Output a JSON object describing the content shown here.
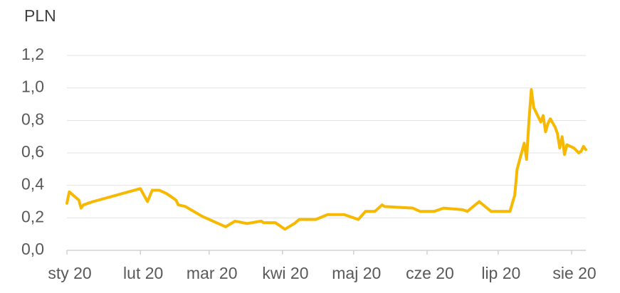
{
  "chart_data": {
    "type": "line",
    "y_axis_label": "PLN",
    "x": [
      0,
      1,
      5,
      6,
      7,
      11,
      31,
      34,
      36,
      39,
      42,
      46,
      47,
      50,
      57,
      67,
      71,
      76,
      82,
      83,
      88,
      92,
      96,
      98,
      105,
      110,
      117,
      123,
      126,
      130,
      133,
      134,
      146,
      149,
      155,
      159,
      167,
      169,
      174,
      179,
      187,
      189,
      190,
      193,
      194,
      195,
      196,
      197,
      199,
      200,
      201,
      202,
      203,
      204,
      206,
      207,
      208,
      209,
      210,
      211,
      214,
      216,
      217,
      218,
      219
    ],
    "series": [
      {
        "name": "PLN",
        "color": "#f7b800",
        "values": [
          0.29,
          0.36,
          0.31,
          0.26,
          0.28,
          0.3,
          0.38,
          0.3,
          0.37,
          0.37,
          0.35,
          0.31,
          0.28,
          0.27,
          0.21,
          0.145,
          0.18,
          0.165,
          0.18,
          0.17,
          0.17,
          0.13,
          0.165,
          0.19,
          0.19,
          0.22,
          0.22,
          0.19,
          0.24,
          0.24,
          0.28,
          0.27,
          0.26,
          0.24,
          0.24,
          0.26,
          0.25,
          0.24,
          0.3,
          0.24,
          0.24,
          0.34,
          0.5,
          0.66,
          0.56,
          0.8,
          0.99,
          0.88,
          0.82,
          0.79,
          0.83,
          0.73,
          0.78,
          0.81,
          0.76,
          0.72,
          0.63,
          0.7,
          0.59,
          0.65,
          0.63,
          0.6,
          0.61,
          0.64,
          0.62
        ]
      }
    ],
    "xlim": [
      0,
      219
    ],
    "xticks": [
      {
        "value": 0,
        "label": "sty 20"
      },
      {
        "value": 31,
        "label": "lut 20"
      },
      {
        "value": 60,
        "label": "mar 20"
      },
      {
        "value": 91,
        "label": "kwi 20"
      },
      {
        "value": 121,
        "label": "maj 20"
      },
      {
        "value": 152,
        "label": "cze 20"
      },
      {
        "value": 182,
        "label": "lip 20"
      },
      {
        "value": 213,
        "label": "sie 20"
      }
    ],
    "ylim": [
      0,
      1.2
    ],
    "yticks": [
      {
        "value": 0,
        "label": "0,0"
      },
      {
        "value": 0.2,
        "label": "0,2"
      },
      {
        "value": 0.4,
        "label": "0,4"
      },
      {
        "value": 0.6,
        "label": "0,6"
      },
      {
        "value": 0.8,
        "label": "0,8"
      },
      {
        "value": 1.0,
        "label": "1,0"
      },
      {
        "value": 1.2,
        "label": "1,2"
      }
    ],
    "grid": true
  }
}
